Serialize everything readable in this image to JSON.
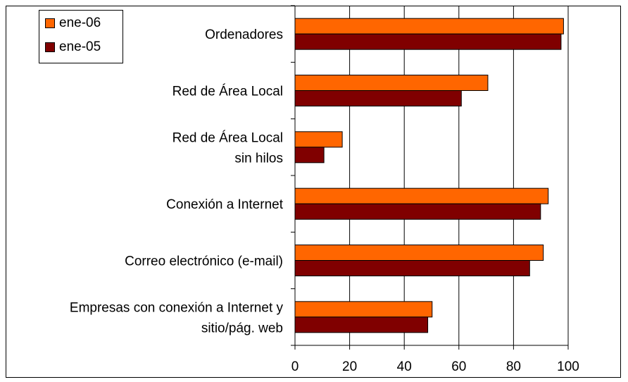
{
  "chart_data": {
    "type": "bar",
    "orientation": "horizontal",
    "categories": [
      [
        "Ordenadores"
      ],
      [
        "Red de Área Local"
      ],
      [
        "Red de Área Local",
        "sin hilos"
      ],
      [
        "Conexión a Internet"
      ],
      [
        "Correo electrónico (e-mail)"
      ],
      [
        "Empresas con conexión a Internet y",
        "sitio/pág. web"
      ]
    ],
    "series": [
      {
        "name": "ene-06",
        "color": "#FF6600",
        "values": [
          98.3,
          70.6,
          17.3,
          92.7,
          90.9,
          50.2
        ]
      },
      {
        "name": "ene-05",
        "color": "#800000",
        "values": [
          97.4,
          60.9,
          10.6,
          89.9,
          85.9,
          48.6
        ]
      }
    ],
    "xlim": [
      0,
      100
    ],
    "xticks": [
      "0",
      "20",
      "40",
      "60",
      "80",
      "100"
    ],
    "grid": "vertical",
    "legend": "top-left"
  }
}
